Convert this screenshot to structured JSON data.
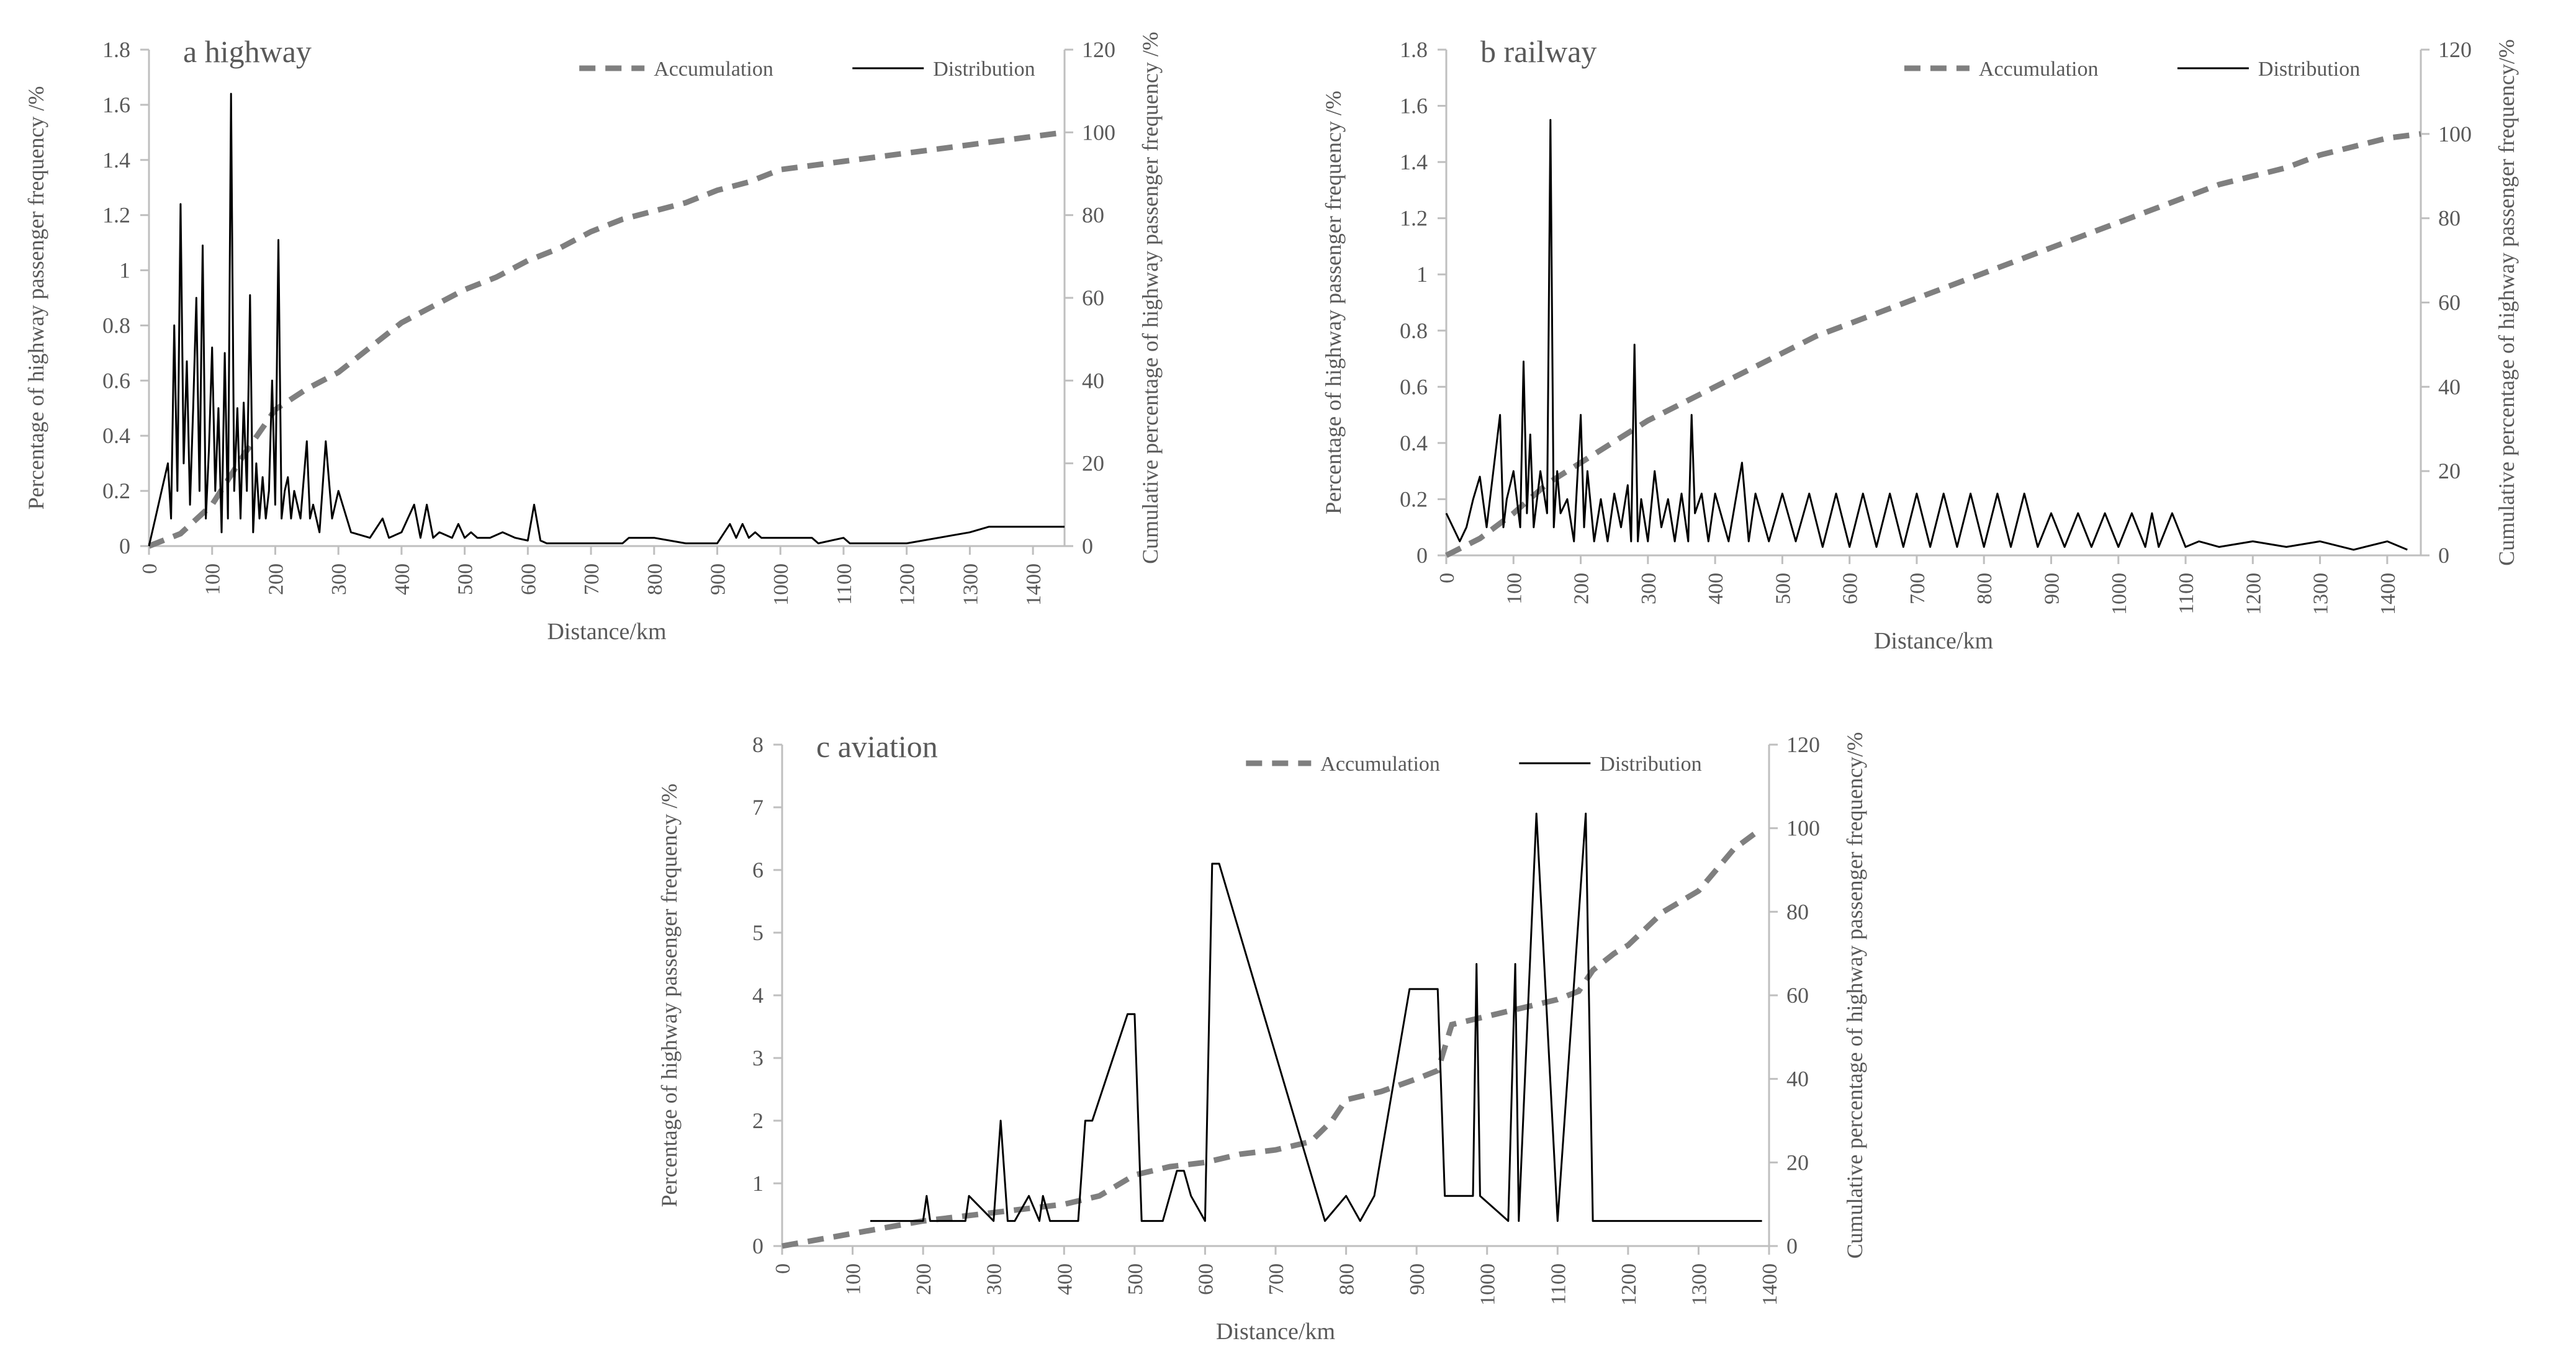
{
  "chart_data": [
    {
      "type": "line",
      "title": "a highway",
      "xlabel": "Distance/km",
      "ylabel": "Percentage of highway passenger frequency /%",
      "y2label": "Cumulative percentage of highway passenger frequency /%",
      "xlim": [
        0,
        1450
      ],
      "ylim": [
        0,
        1.8
      ],
      "y2lim": [
        0,
        120
      ],
      "xticks": [
        "0",
        "100",
        "200",
        "300",
        "400",
        "500",
        "600",
        "700",
        "800",
        "900",
        "1000",
        "1100",
        "1200",
        "1300",
        "1400"
      ],
      "xtick_values": [
        0,
        100,
        200,
        300,
        400,
        500,
        600,
        700,
        800,
        900,
        1000,
        1100,
        1200,
        1300,
        1400
      ],
      "yticks": [
        "0",
        "0.2",
        "0.4",
        "0.6",
        "0.8",
        "1",
        "1.2",
        "1.4",
        "1.6",
        "1.8"
      ],
      "ytick_values": [
        0,
        0.2,
        0.4,
        0.6,
        0.8,
        1,
        1.2,
        1.4,
        1.6,
        1.8
      ],
      "y2ticks": [
        "0",
        "20",
        "40",
        "60",
        "80",
        "100",
        "120"
      ],
      "y2tick_values": [
        0,
        20,
        40,
        60,
        80,
        100,
        120
      ],
      "legend": [
        "Accumulation",
        "Distribution"
      ],
      "series": [
        {
          "name": "Accumulation",
          "axis": "right",
          "style": "dashed",
          "x": [
            0,
            50,
            100,
            150,
            200,
            250,
            300,
            350,
            400,
            450,
            500,
            550,
            600,
            650,
            700,
            750,
            800,
            850,
            900,
            950,
            1000,
            1100,
            1200,
            1300,
            1400,
            1450
          ],
          "y": [
            0,
            3,
            10,
            22,
            33,
            38,
            42,
            48,
            54,
            58,
            62,
            65,
            69,
            72,
            76,
            79,
            81,
            83,
            86,
            88,
            91,
            93,
            95,
            97,
            99,
            100
          ]
        },
        {
          "name": "Distribution",
          "axis": "left",
          "style": "solid",
          "x": [
            0,
            10,
            20,
            30,
            35,
            40,
            45,
            50,
            55,
            60,
            65,
            70,
            75,
            80,
            85,
            90,
            95,
            100,
            105,
            110,
            115,
            120,
            125,
            130,
            135,
            140,
            145,
            150,
            155,
            160,
            165,
            170,
            175,
            180,
            185,
            190,
            195,
            200,
            205,
            210,
            215,
            220,
            225,
            230,
            240,
            250,
            255,
            260,
            270,
            280,
            290,
            300,
            320,
            350,
            370,
            380,
            400,
            420,
            430,
            440,
            450,
            460,
            480,
            490,
            500,
            510,
            520,
            540,
            560,
            580,
            600,
            610,
            620,
            630,
            700,
            750,
            760,
            800,
            850,
            900,
            920,
            930,
            940,
            950,
            960,
            970,
            980,
            1000,
            1050,
            1060,
            1100,
            1110,
            1150,
            1200,
            1300,
            1330,
            1400,
            1450
          ],
          "y": [
            0,
            0.1,
            0.2,
            0.3,
            0.1,
            0.8,
            0.2,
            1.24,
            0.3,
            0.67,
            0.15,
            0.5,
            0.9,
            0.2,
            1.09,
            0.1,
            0.35,
            0.72,
            0.2,
            0.5,
            0.05,
            0.7,
            0.1,
            1.64,
            0.2,
            0.5,
            0.1,
            0.52,
            0.2,
            0.91,
            0.05,
            0.3,
            0.1,
            0.25,
            0.1,
            0.2,
            0.6,
            0.15,
            1.11,
            0.1,
            0.2,
            0.25,
            0.1,
            0.2,
            0.1,
            0.38,
            0.1,
            0.15,
            0.05,
            0.38,
            0.1,
            0.2,
            0.05,
            0.03,
            0.1,
            0.03,
            0.05,
            0.15,
            0.03,
            0.15,
            0.03,
            0.05,
            0.03,
            0.08,
            0.03,
            0.05,
            0.03,
            0.03,
            0.05,
            0.03,
            0.02,
            0.15,
            0.02,
            0.01,
            0.01,
            0.01,
            0.03,
            0.03,
            0.01,
            0.01,
            0.08,
            0.03,
            0.08,
            0.03,
            0.05,
            0.03,
            0.03,
            0.03,
            0.03,
            0.01,
            0.03,
            0.01,
            0.01,
            0.01,
            0.05,
            0.07,
            0.07,
            0.07
          ]
        }
      ]
    },
    {
      "type": "line",
      "title": "b railway",
      "xlabel": "Distance/km",
      "ylabel": "Percentage of highway passenger frequency /%",
      "y2label": "Cumulative percentage of highway passenger frequency/%",
      "xlim": [
        0,
        1450
      ],
      "ylim": [
        0,
        1.8
      ],
      "y2lim": [
        0,
        120
      ],
      "xticks": [
        "0",
        "100",
        "200",
        "300",
        "400",
        "500",
        "600",
        "700",
        "800",
        "900",
        "1000",
        "1100",
        "1200",
        "1300",
        "1400"
      ],
      "xtick_values": [
        0,
        100,
        200,
        300,
        400,
        500,
        600,
        700,
        800,
        900,
        1000,
        1100,
        1200,
        1300,
        1400
      ],
      "yticks": [
        "0",
        "0.2",
        "0.4",
        "0.6",
        "0.8",
        "1",
        "1.2",
        "1.4",
        "1.6",
        "1.8"
      ],
      "ytick_values": [
        0,
        0.2,
        0.4,
        0.6,
        0.8,
        1,
        1.2,
        1.4,
        1.6,
        1.8
      ],
      "y2ticks": [
        "0",
        "20",
        "40",
        "60",
        "80",
        "100",
        "120"
      ],
      "y2tick_values": [
        0,
        20,
        40,
        60,
        80,
        100,
        120
      ],
      "legend": [
        "Accumulation",
        "Distribution"
      ],
      "series": [
        {
          "name": "Accumulation",
          "axis": "right",
          "style": "dashed",
          "x": [
            0,
            50,
            100,
            150,
            200,
            250,
            300,
            350,
            400,
            450,
            500,
            550,
            600,
            650,
            700,
            750,
            800,
            850,
            900,
            950,
            1000,
            1050,
            1100,
            1150,
            1200,
            1250,
            1300,
            1350,
            1400,
            1450
          ],
          "y": [
            0,
            4,
            10,
            17,
            22,
            27,
            32,
            36,
            40,
            44,
            48,
            52,
            55,
            58,
            61,
            64,
            67,
            70,
            73,
            76,
            79,
            82,
            85,
            88,
            90,
            92,
            95,
            97,
            99,
            100
          ]
        },
        {
          "name": "Distribution",
          "axis": "left",
          "style": "solid",
          "x": [
            0,
            20,
            30,
            40,
            50,
            60,
            70,
            80,
            85,
            90,
            100,
            110,
            115,
            120,
            125,
            130,
            140,
            150,
            155,
            160,
            165,
            170,
            180,
            190,
            200,
            205,
            210,
            220,
            230,
            240,
            250,
            260,
            270,
            275,
            280,
            285,
            290,
            300,
            310,
            320,
            330,
            340,
            350,
            360,
            365,
            370,
            380,
            390,
            400,
            420,
            440,
            450,
            460,
            480,
            500,
            520,
            540,
            560,
            580,
            600,
            620,
            640,
            660,
            680,
            700,
            720,
            740,
            760,
            780,
            800,
            820,
            840,
            860,
            880,
            900,
            920,
            940,
            960,
            980,
            1000,
            1020,
            1040,
            1050,
            1060,
            1080,
            1100,
            1120,
            1150,
            1200,
            1250,
            1300,
            1350,
            1400,
            1430
          ],
          "y": [
            0.15,
            0.05,
            0.1,
            0.2,
            0.28,
            0.1,
            0.3,
            0.5,
            0.1,
            0.2,
            0.3,
            0.1,
            0.69,
            0.15,
            0.43,
            0.1,
            0.3,
            0.15,
            1.55,
            0.1,
            0.3,
            0.15,
            0.2,
            0.05,
            0.5,
            0.1,
            0.3,
            0.05,
            0.2,
            0.05,
            0.22,
            0.1,
            0.25,
            0.05,
            0.75,
            0.05,
            0.2,
            0.05,
            0.3,
            0.1,
            0.2,
            0.05,
            0.22,
            0.05,
            0.5,
            0.15,
            0.22,
            0.05,
            0.22,
            0.05,
            0.33,
            0.05,
            0.22,
            0.05,
            0.22,
            0.05,
            0.22,
            0.03,
            0.22,
            0.03,
            0.22,
            0.03,
            0.22,
            0.03,
            0.22,
            0.03,
            0.22,
            0.03,
            0.22,
            0.03,
            0.22,
            0.03,
            0.22,
            0.03,
            0.15,
            0.03,
            0.15,
            0.03,
            0.15,
            0.03,
            0.15,
            0.03,
            0.15,
            0.03,
            0.15,
            0.03,
            0.05,
            0.03,
            0.05,
            0.03,
            0.05,
            0.02,
            0.05,
            0.02
          ]
        }
      ]
    },
    {
      "type": "line",
      "title": "c aviation",
      "xlabel": "Distance/km",
      "ylabel": "Percentage of highway passenger frequency /%",
      "y2label": "Cumulative percentage of highway passenger frequency/%",
      "xlim": [
        0,
        1400
      ],
      "ylim": [
        0,
        8
      ],
      "y2lim": [
        0,
        120
      ],
      "xticks": [
        "0",
        "100",
        "200",
        "300",
        "400",
        "500",
        "600",
        "700",
        "800",
        "900",
        "1000",
        "1100",
        "1200",
        "1300",
        "1400"
      ],
      "xtick_values": [
        0,
        100,
        200,
        300,
        400,
        500,
        600,
        700,
        800,
        900,
        1000,
        1100,
        1200,
        1300,
        1400
      ],
      "yticks": [
        "0",
        "1",
        "2",
        "3",
        "4",
        "5",
        "6",
        "7",
        "8"
      ],
      "ytick_values": [
        0,
        1,
        2,
        3,
        4,
        5,
        6,
        7,
        8
      ],
      "y2ticks": [
        "0",
        "20",
        "40",
        "60",
        "80",
        "100",
        "120"
      ],
      "y2tick_values": [
        0,
        20,
        40,
        60,
        80,
        100,
        120
      ],
      "legend": [
        "Accumulation",
        "Distribution"
      ],
      "series": [
        {
          "name": "Accumulation",
          "axis": "right",
          "style": "dashed",
          "x": [
            0,
            100,
            200,
            300,
            400,
            450,
            500,
            550,
            600,
            650,
            700,
            750,
            780,
            800,
            850,
            900,
            930,
            950,
            1000,
            1050,
            1100,
            1130,
            1150,
            1180,
            1200,
            1250,
            1300,
            1350,
            1390
          ],
          "y": [
            0,
            3,
            6,
            8,
            10,
            12,
            17,
            19,
            20,
            22,
            23,
            25,
            30,
            35,
            37,
            40,
            42,
            53,
            55,
            57,
            59,
            61,
            66,
            70,
            72,
            80,
            85,
            95,
            100
          ]
        },
        {
          "name": "Distribution",
          "axis": "left",
          "style": "solid",
          "x": [
            125,
            200,
            205,
            210,
            260,
            265,
            300,
            310,
            320,
            330,
            350,
            365,
            370,
            380,
            420,
            430,
            440,
            490,
            500,
            510,
            540,
            560,
            570,
            580,
            600,
            610,
            620,
            770,
            800,
            820,
            840,
            890,
            900,
            930,
            940,
            980,
            985,
            990,
            1030,
            1040,
            1045,
            1070,
            1100,
            1140,
            1150,
            1160,
            1220,
            1390
          ],
          "y": [
            0.4,
            0.4,
            0.8,
            0.4,
            0.4,
            0.8,
            0.4,
            2.0,
            0.4,
            0.4,
            0.8,
            0.4,
            0.8,
            0.4,
            0.4,
            2.0,
            2.0,
            3.7,
            3.7,
            0.4,
            0.4,
            1.2,
            1.2,
            0.8,
            0.4,
            6.1,
            6.1,
            0.4,
            0.8,
            0.4,
            0.8,
            4.1,
            4.1,
            4.1,
            0.8,
            0.8,
            4.5,
            0.8,
            0.4,
            4.5,
            0.4,
            6.9,
            0.4,
            6.9,
            0.4,
            0.4,
            0.4,
            0.4
          ]
        }
      ]
    }
  ]
}
